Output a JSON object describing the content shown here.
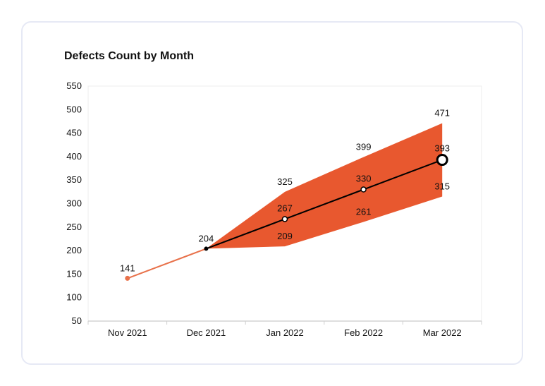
{
  "chart_data": {
    "type": "line",
    "title": "Defects Count by Month",
    "xlabel": "",
    "ylabel": "",
    "categories": [
      "Nov 2021",
      "Dec 2021",
      "Jan 2022",
      "Feb 2022",
      "Mar 2022"
    ],
    "ylim": [
      50,
      550
    ],
    "yticks": [
      50,
      100,
      150,
      200,
      250,
      300,
      350,
      400,
      450,
      500,
      550
    ],
    "actual": {
      "values": [
        141,
        204,
        null,
        null,
        null
      ],
      "color": "#e8714a"
    },
    "forecast": {
      "values": [
        null,
        204,
        267,
        330,
        393
      ],
      "color": "#000000"
    },
    "upper_bound": {
      "values": [
        null,
        204,
        325,
        399,
        471
      ]
    },
    "lower_bound": {
      "values": [
        null,
        204,
        209,
        261,
        315
      ]
    },
    "band_color": "#e8582f",
    "grid": false
  }
}
